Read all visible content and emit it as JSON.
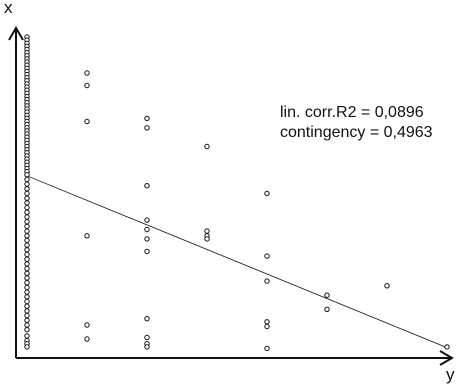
{
  "chart_data": {
    "type": "scatter",
    "xlabel": "y",
    "ylabel": "x",
    "annotations": [
      "lin. corr.R2 = 0,0896",
      "contingency = 0,4963"
    ],
    "xlim": [
      0,
      14
    ],
    "ylim": [
      0,
      20
    ],
    "grid": false,
    "legend": "none",
    "marker": "open-circle",
    "trendline": {
      "x1": 0,
      "y1": 11.13,
      "x2": 14,
      "y2": 0.15
    },
    "points": [
      [
        2,
        17.7
      ],
      [
        2,
        16.9
      ],
      [
        2,
        14.6
      ],
      [
        2,
        7.3
      ],
      [
        2,
        1.6
      ],
      [
        2,
        0.7
      ],
      [
        4,
        14.8
      ],
      [
        4,
        14.2
      ],
      [
        4,
        10.5
      ],
      [
        4,
        8.3
      ],
      [
        4,
        7.7
      ],
      [
        4,
        7.1
      ],
      [
        4,
        6.3
      ],
      [
        4,
        2.0
      ],
      [
        4,
        0.8
      ],
      [
        4,
        0.4
      ],
      [
        4,
        0.2
      ],
      [
        6,
        13.0
      ],
      [
        6,
        7.6
      ],
      [
        6,
        7.3
      ],
      [
        6,
        7.1
      ],
      [
        8,
        10.0
      ],
      [
        8,
        6.0
      ],
      [
        8,
        4.4
      ],
      [
        8,
        1.8
      ],
      [
        8,
        1.5
      ],
      [
        8,
        0.1
      ],
      [
        10,
        3.5
      ],
      [
        10,
        2.6
      ],
      [
        12,
        4.1
      ],
      [
        14,
        0.2
      ]
    ],
    "column_points_x": 0,
    "column_points_y": [
      20,
      19.8,
      19.6,
      19.4,
      19.2,
      19,
      18.8,
      18.6,
      18.4,
      18.2,
      18,
      17.8,
      17.6,
      17.4,
      17.2,
      17,
      16.8,
      16.6,
      16.4,
      16.2,
      16,
      15.8,
      15.6,
      15.4,
      15.2,
      15,
      14.8,
      14.6,
      14.4,
      14.2,
      14,
      13.8,
      13.6,
      13.4,
      13.2,
      13,
      12.8,
      12.6,
      12.4,
      12.2,
      12,
      11.8,
      11.6,
      11.4,
      11.2,
      10.9,
      10.6,
      10.3,
      10.0,
      9.7,
      9.4,
      9.1,
      8.8,
      8.5,
      8.2,
      7.9,
      7.6,
      7.3,
      7.0,
      6.7,
      6.4,
      6.1,
      5.8,
      5.5,
      5.2,
      4.9,
      4.6,
      4.3,
      4.0,
      3.7,
      3.4,
      3.1,
      2.8,
      2.5,
      2.2,
      1.9,
      1.6,
      1.3,
      0.9,
      0.6,
      0.4,
      0.2
    ]
  }
}
